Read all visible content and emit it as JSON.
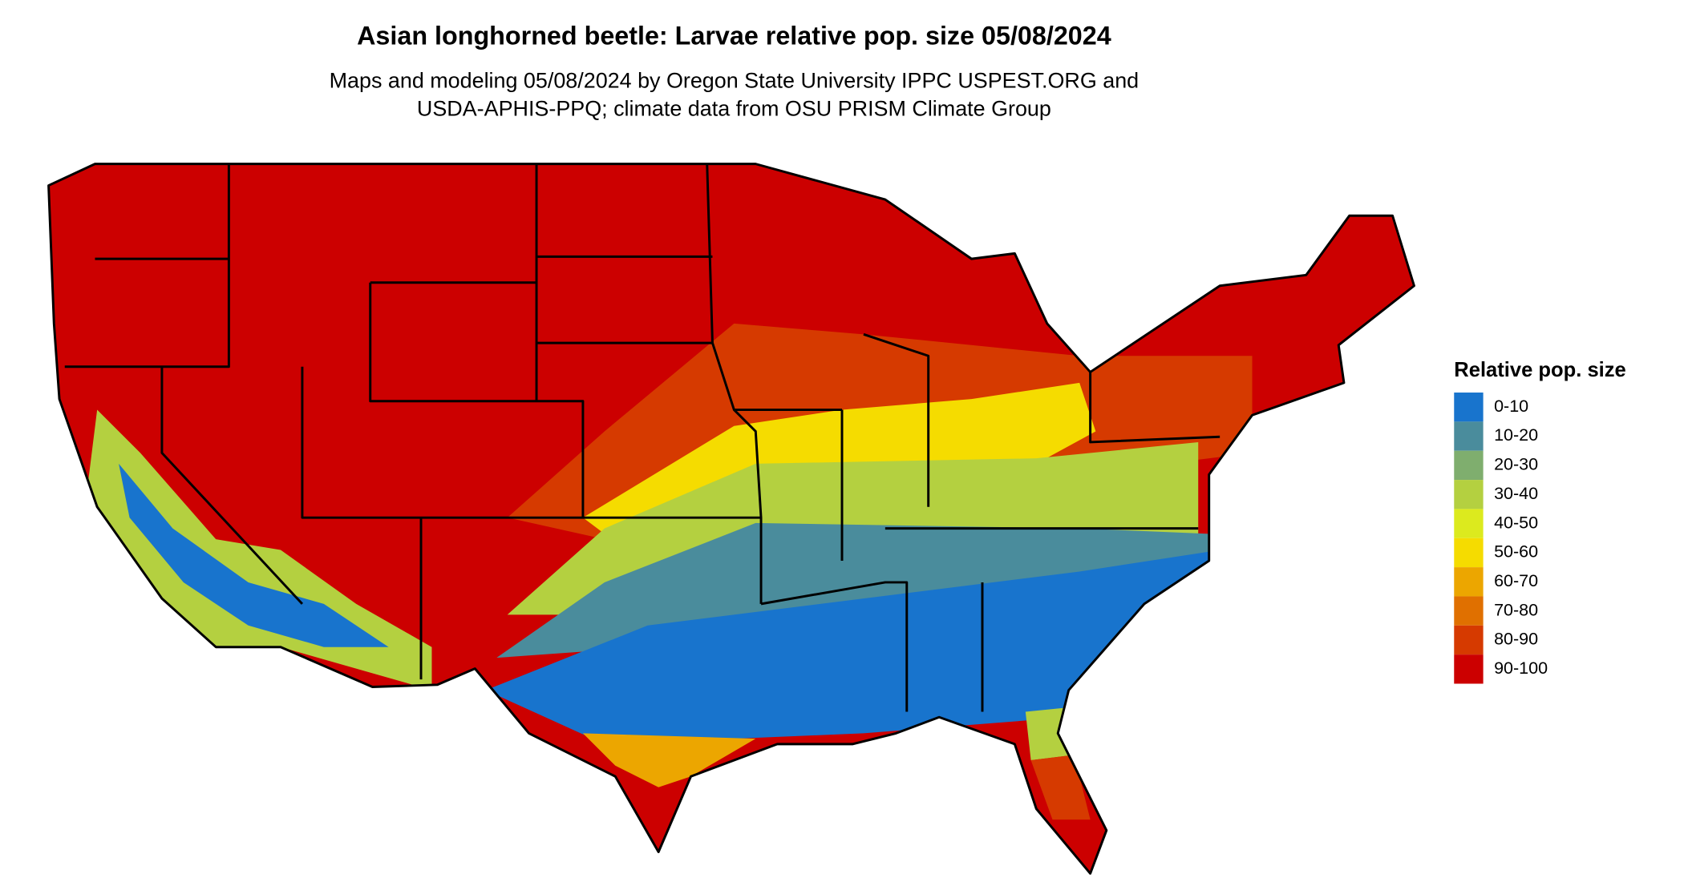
{
  "title": "Asian longhorned beetle: Larvae relative pop. size 05/08/2024",
  "subtitle_lines": [
    "Maps and modeling 05/08/2024 by Oregon State University IPPC USPEST.ORG and",
    "USDA-APHIS-PPQ; climate data from OSU PRISM Climate Group"
  ],
  "legend": {
    "title": "Relative pop. size",
    "items": [
      {
        "label": "0-10",
        "color": "#1874cd"
      },
      {
        "label": "10-20",
        "color": "#4a8c9c"
      },
      {
        "label": "20-30",
        "color": "#7fae6e"
      },
      {
        "label": "30-40",
        "color": "#b4d040"
      },
      {
        "label": "40-50",
        "color": "#dcea1e"
      },
      {
        "label": "50-60",
        "color": "#f5dc00"
      },
      {
        "label": "60-70",
        "color": "#eca600"
      },
      {
        "label": "70-80",
        "color": "#e07000"
      },
      {
        "label": "80-90",
        "color": "#d63a00"
      },
      {
        "label": "90-100",
        "color": "#cc0000"
      }
    ]
  }
}
